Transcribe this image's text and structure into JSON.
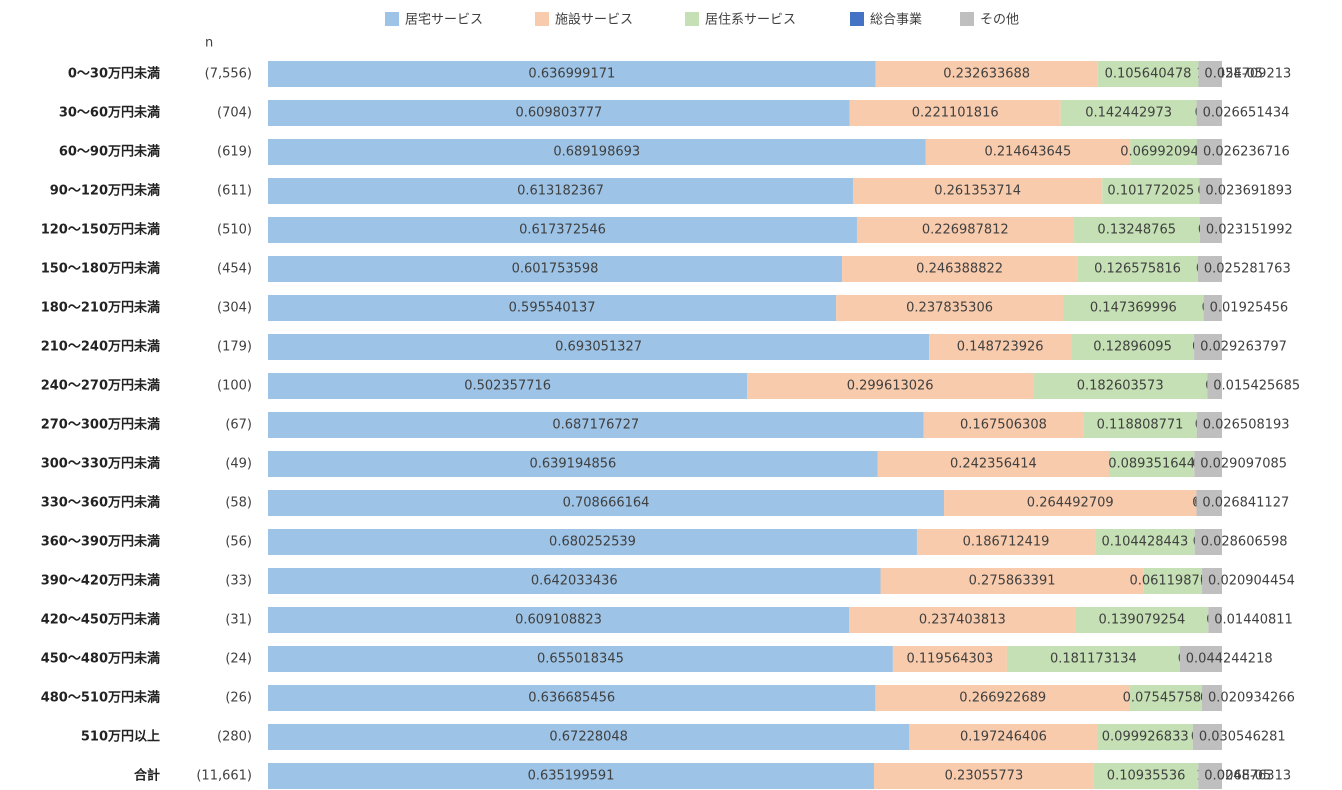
{
  "chart_data": {
    "type": "stacked-bar-horizontal",
    "n_header": "n",
    "categories": [
      "0～30万円未満",
      "30～60万円未満",
      "60～90万円未満",
      "90～120万円未満",
      "120～150万円未満",
      "150～180万円未満",
      "180～210万円未満",
      "210～240万円未満",
      "240～270万円未満",
      "270～300万円未満",
      "300～330万円未満",
      "330～360万円未満",
      "360～390万円未満",
      "390～420万円未満",
      "420～450万円未満",
      "450～480万円未満",
      "480～510万円未満",
      "510万円以上",
      "合計"
    ],
    "n_labels": [
      "(7,556)",
      "(704)",
      "(619)",
      "(611)",
      "(510)",
      "(454)",
      "(304)",
      "(179)",
      "(100)",
      "(67)",
      "(49)",
      "(58)",
      "(56)",
      "(33)",
      "(31)",
      "(24)",
      "(26)",
      "(280)",
      "(11,661)"
    ],
    "xlim": [
      0,
      1
    ],
    "series": [
      {
        "name": "居宅サービス",
        "color": "#9dc3e6",
        "values": [
          0.636999171,
          0.609803777,
          0.689198693,
          0.613182367,
          0.617372546,
          0.601753598,
          0.595540137,
          0.693051327,
          0.502357716,
          0.687176727,
          0.639194856,
          0.708666164,
          0.680252539,
          0.642033436,
          0.609108823,
          0.655018345,
          0.636685456,
          0.67228048,
          0.635199591
        ]
      },
      {
        "name": "施設サービス",
        "color": "#f8cbad",
        "values": [
          0.232633688,
          0.221101816,
          0.214643645,
          0.261353714,
          0.226987812,
          0.246388822,
          0.237835306,
          0.148723926,
          0.299613026,
          0.167506308,
          0.242356414,
          0.264492709,
          0.186712419,
          0.275863391,
          0.237403813,
          0.119564303,
          0.266922689,
          0.197246406,
          0.23055773
        ]
      },
      {
        "name": "居住系サービス",
        "color": "#c5e0b4",
        "values": [
          0.105640478,
          0.142442973,
          0.069920946,
          0.101772025,
          0.13248765,
          0.126575816,
          0.147369996,
          0.12896095,
          0.182603573,
          0.118808771,
          0.089351644,
          0,
          0.104428443,
          0.061198719,
          0.139079254,
          0.181173134,
          0.075457589,
          0.099926833,
          0.10935536
        ]
      },
      {
        "name": "総合事業",
        "color": "#4472c4",
        "values": [
          1.745e-05,
          0,
          0,
          0,
          0,
          0,
          0,
          0,
          0,
          0,
          0,
          0,
          0,
          0,
          0,
          0,
          0,
          0,
          1.1006e-05
        ],
        "value_labels": [
          "1.745E-05",
          "0",
          "0",
          "0",
          "0",
          "0",
          "0",
          "0",
          "0",
          "0",
          "0",
          "0",
          "0",
          "0",
          "0",
          "0",
          "0",
          "0",
          "1.1006E-05"
        ]
      },
      {
        "name": "その他",
        "color": "#bfbfbf",
        "values": [
          0.024709213,
          0.026651434,
          0.026236716,
          0.023691893,
          0.023151992,
          0.025281763,
          0.01925456,
          0.029263797,
          0.015425685,
          0.026508193,
          0.029097085,
          0.026841127,
          0.028606598,
          0.020904454,
          0.01440811,
          0.044244218,
          0.020934266,
          0.030546281,
          0.024876313
        ]
      }
    ]
  }
}
